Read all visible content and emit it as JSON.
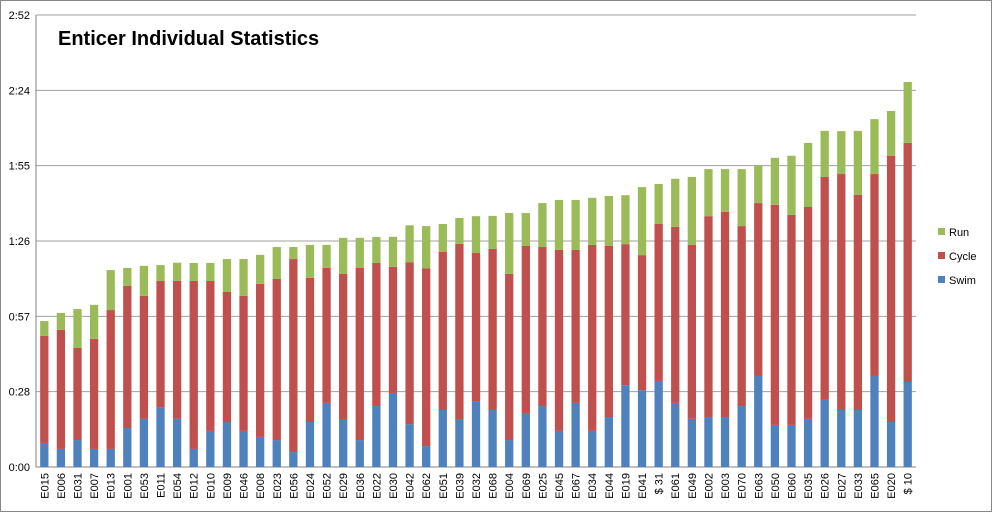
{
  "chart_data": {
    "type": "stacked_bar",
    "title": "Enticer Individual Statistics",
    "categories": [
      "E015",
      "E006",
      "E031",
      "E007",
      "E013",
      "E001",
      "E053",
      "E011",
      "E054",
      "E012",
      "E010",
      "E009",
      "E046",
      "E008",
      "E023",
      "E056",
      "E024",
      "E052",
      "E029",
      "E036",
      "E022",
      "E030",
      "E042",
      "E062",
      "E051",
      "E039",
      "E032",
      "E068",
      "E004",
      "E069",
      "E025",
      "E045",
      "E067",
      "E034",
      "E044",
      "E019",
      "E041",
      "$ 31",
      "E061",
      "E049",
      "E002",
      "E003",
      "E070",
      "E063",
      "E050",
      "E060",
      "E035",
      "E026",
      "E027",
      "E033",
      "E065",
      "E020",
      "$ 10"
    ],
    "series": [
      {
        "name": "Swim",
        "color": "#4f81bd",
        "values": [
          9.2,
          6.9,
          10.3,
          6.9,
          6.9,
          14.9,
          18.4,
          22.9,
          18.4,
          6.9,
          13.8,
          17.2,
          13.8,
          11.5,
          10.3,
          5.7,
          17.2,
          24.5,
          18.0,
          10.3,
          23.3,
          28.3,
          16.4,
          8.0,
          21.8,
          18.0,
          25.2,
          21.8,
          10.3,
          20.3,
          23.3,
          13.8,
          24.5,
          13.8,
          19.1,
          31.3,
          29.4,
          32.9,
          24.5,
          18.4,
          19.1,
          19.1,
          23.3,
          34.8,
          16.1,
          16.1,
          18.4,
          26.0,
          21.8,
          21.8,
          34.8,
          17.2,
          32.5
        ]
      },
      {
        "name": "Cycle",
        "color": "#c0504d",
        "values": [
          40.9,
          45.5,
          35.2,
          42.1,
          53.1,
          54.3,
          47.0,
          48.2,
          52.8,
          64.2,
          57.3,
          49.7,
          51.6,
          58.5,
          61.6,
          73.8,
          55.1,
          51.6,
          55.8,
          65.8,
          54.7,
          48.2,
          61.9,
          68.0,
          60.4,
          67.3,
          56.6,
          61.6,
          63.5,
          64.2,
          60.8,
          69.2,
          58.5,
          71.1,
          65.4,
          53.9,
          51.6,
          60.0,
          67.3,
          66.5,
          76.8,
          78.4,
          68.8,
          66.1,
          84.1,
          80.3,
          81.0,
          84.9,
          90.2,
          82.2,
          77.2,
          101.7,
          91.4
        ]
      },
      {
        "name": "Run",
        "color": "#9bbb59",
        "values": [
          5.7,
          6.5,
          14.9,
          13.0,
          15.3,
          6.9,
          11.5,
          6.1,
          6.9,
          6.9,
          6.9,
          12.6,
          14.1,
          11.1,
          12.2,
          4.6,
          12.6,
          8.8,
          13.8,
          11.5,
          9.9,
          11.5,
          14.1,
          16.1,
          10.7,
          9.9,
          14.1,
          12.6,
          23.3,
          12.6,
          16.8,
          19.1,
          19.1,
          18.0,
          19.1,
          18.7,
          26.0,
          15.3,
          18.4,
          26.0,
          18.0,
          16.4,
          21.8,
          14.5,
          18.0,
          22.6,
          24.5,
          17.6,
          16.4,
          24.5,
          21.0,
          17.2,
          23.3
        ]
      }
    ],
    "ylim": [
      0,
      172.8
    ],
    "yticks": [
      {
        "value": 0,
        "label": "0:00"
      },
      {
        "value": 28.8,
        "label": "0:28"
      },
      {
        "value": 57.6,
        "label": "0:57"
      },
      {
        "value": 86.4,
        "label": "1:26"
      },
      {
        "value": 115.2,
        "label": "1:55"
      },
      {
        "value": 144,
        "label": "2:24"
      },
      {
        "value": 172.8,
        "label": "2:52"
      }
    ],
    "grid": true,
    "legend": "right"
  }
}
